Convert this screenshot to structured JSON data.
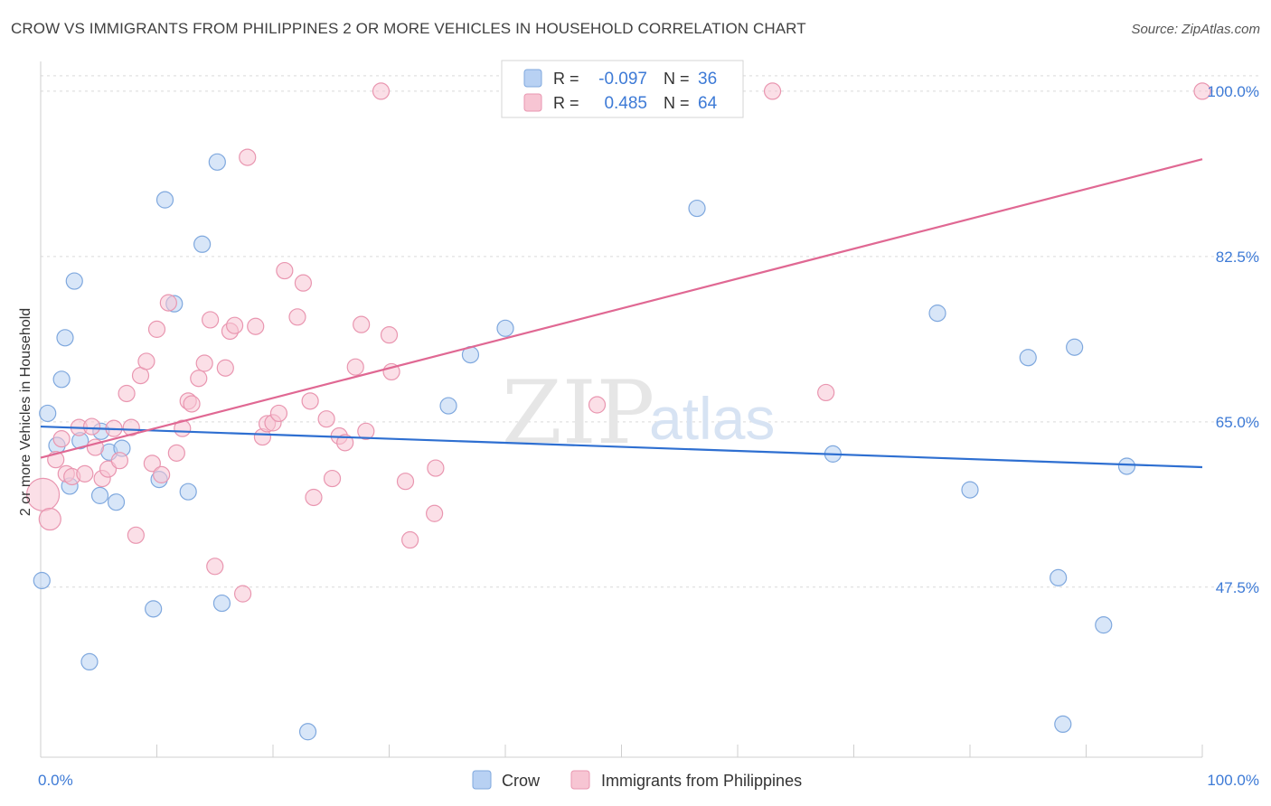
{
  "title": "CROW VS IMMIGRANTS FROM PHILIPPINES 2 OR MORE VEHICLES IN HOUSEHOLD CORRELATION CHART",
  "source": "Source: ZipAtlas.com",
  "watermark": {
    "zip": "ZIP",
    "atlas": "atlas"
  },
  "colors": {
    "crow_fill": "#b8d1f3",
    "crow_stroke": "#7fa8de",
    "crow_line": "#2e6fd1",
    "phil_fill": "#f7c5d3",
    "phil_stroke": "#e996b0",
    "phil_line": "#e06893",
    "tick_label": "#3d7ad6",
    "grid": "#d9d9d9"
  },
  "legend": {
    "rows": [
      {
        "series": "crow",
        "r_label": "R =",
        "r_value": "-0.097",
        "n_label": "N =",
        "n_value": "36"
      },
      {
        "series": "phil",
        "r_label": "R =",
        "r_value": "0.485",
        "n_label": "N =",
        "n_value": "64"
      }
    ]
  },
  "chart_data": {
    "type": "scatter",
    "title": "CROW VS IMMIGRANTS FROM PHILIPPINES 2 OR MORE VEHICLES IN HOUSEHOLD CORRELATION CHART",
    "xlabel": "",
    "ylabel": "2 or more Vehicles in Household",
    "xlim": [
      0,
      100
    ],
    "ylim": [
      29.5,
      102
    ],
    "x_tick_labels": [
      {
        "value": 0,
        "label": "0.0%"
      },
      {
        "value": 100,
        "label": "100.0%"
      }
    ],
    "y_ticks": [
      {
        "value": 100,
        "label": "100.0%"
      },
      {
        "value": 82.5,
        "label": "82.5%"
      },
      {
        "value": 65,
        "label": "65.0%"
      },
      {
        "value": 47.5,
        "label": "47.5%"
      }
    ],
    "grid": true,
    "legend_position": "top-center",
    "series": [
      {
        "name": "Crow",
        "key": "crow",
        "trend": {
          "x": [
            0,
            100
          ],
          "y": [
            64.5,
            60.2
          ]
        },
        "points": [
          [
            0.1,
            48.2,
            9
          ],
          [
            0.6,
            65.9,
            9
          ],
          [
            1.4,
            62.5,
            9
          ],
          [
            1.8,
            69.5,
            9
          ],
          [
            2.1,
            73.9,
            9
          ],
          [
            2.5,
            58.2,
            9
          ],
          [
            2.9,
            79.9,
            9
          ],
          [
            3.4,
            63.0,
            9
          ],
          [
            4.2,
            39.6,
            9
          ],
          [
            5.1,
            57.2,
            9
          ],
          [
            5.2,
            64.0,
            9
          ],
          [
            5.9,
            61.8,
            9
          ],
          [
            6.5,
            56.5,
            9
          ],
          [
            7.0,
            62.2,
            9
          ],
          [
            9.7,
            45.2,
            9
          ],
          [
            10.2,
            58.9,
            9
          ],
          [
            10.7,
            88.5,
            9
          ],
          [
            11.5,
            77.5,
            9
          ],
          [
            12.7,
            57.6,
            9
          ],
          [
            13.9,
            83.8,
            9
          ],
          [
            15.2,
            92.5,
            9
          ],
          [
            15.6,
            45.8,
            9
          ],
          [
            23.0,
            32.2,
            9
          ],
          [
            35.1,
            66.7,
            9
          ],
          [
            37.0,
            72.1,
            9
          ],
          [
            40.0,
            74.9,
            9
          ],
          [
            56.5,
            87.6,
            9
          ],
          [
            68.2,
            61.6,
            9
          ],
          [
            77.2,
            76.5,
            9
          ],
          [
            80.0,
            57.8,
            9
          ],
          [
            85.0,
            71.8,
            9
          ],
          [
            87.6,
            48.5,
            9
          ],
          [
            88.0,
            33.0,
            9
          ],
          [
            89.0,
            72.9,
            9
          ],
          [
            91.5,
            43.5,
            9
          ],
          [
            93.5,
            60.3,
            9
          ]
        ]
      },
      {
        "name": "Immigrants from Philippines",
        "key": "phil",
        "trend": {
          "x": [
            0,
            100
          ],
          "y": [
            61.2,
            92.8
          ]
        },
        "points": [
          [
            0.2,
            57.3,
            18
          ],
          [
            0.8,
            54.7,
            12
          ],
          [
            1.3,
            61.0,
            9
          ],
          [
            1.8,
            63.2,
            9
          ],
          [
            2.2,
            59.5,
            9
          ],
          [
            2.7,
            59.2,
            9
          ],
          [
            3.3,
            64.4,
            9
          ],
          [
            3.8,
            59.5,
            9
          ],
          [
            4.4,
            64.5,
            9
          ],
          [
            4.7,
            62.3,
            9
          ],
          [
            5.3,
            59.0,
            9
          ],
          [
            5.8,
            60.0,
            9
          ],
          [
            6.3,
            64.3,
            9
          ],
          [
            6.8,
            60.9,
            9
          ],
          [
            7.4,
            68.0,
            9
          ],
          [
            7.8,
            64.4,
            9
          ],
          [
            8.2,
            53.0,
            9
          ],
          [
            8.6,
            69.9,
            9
          ],
          [
            9.1,
            71.4,
            9
          ],
          [
            9.6,
            60.6,
            9
          ],
          [
            10.0,
            74.8,
            9
          ],
          [
            10.4,
            59.4,
            9
          ],
          [
            11.0,
            77.6,
            9
          ],
          [
            11.7,
            61.7,
            9
          ],
          [
            12.2,
            64.3,
            9
          ],
          [
            12.7,
            67.2,
            9
          ],
          [
            13.0,
            66.9,
            9
          ],
          [
            13.6,
            69.6,
            9
          ],
          [
            14.1,
            71.2,
            9
          ],
          [
            14.6,
            75.8,
            9
          ],
          [
            15.0,
            49.7,
            9
          ],
          [
            15.9,
            70.7,
            9
          ],
          [
            16.3,
            74.6,
            9
          ],
          [
            16.7,
            75.2,
            9
          ],
          [
            17.4,
            46.8,
            9
          ],
          [
            17.8,
            93.0,
            9
          ],
          [
            18.5,
            75.1,
            9
          ],
          [
            19.1,
            63.4,
            9
          ],
          [
            19.5,
            64.8,
            9
          ],
          [
            20.0,
            64.9,
            9
          ],
          [
            20.5,
            65.9,
            9
          ],
          [
            21.0,
            81.0,
            9
          ],
          [
            22.1,
            76.1,
            9
          ],
          [
            22.6,
            79.7,
            9
          ],
          [
            23.2,
            67.2,
            9
          ],
          [
            23.5,
            57.0,
            9
          ],
          [
            24.6,
            65.3,
            9
          ],
          [
            25.1,
            59.0,
            9
          ],
          [
            25.7,
            63.5,
            9
          ],
          [
            26.2,
            62.8,
            9
          ],
          [
            27.1,
            70.8,
            9
          ],
          [
            27.6,
            75.3,
            9
          ],
          [
            28.0,
            64.0,
            9
          ],
          [
            29.3,
            100.0,
            9
          ],
          [
            30.0,
            74.2,
            9
          ],
          [
            30.2,
            70.3,
            9
          ],
          [
            31.4,
            58.7,
            9
          ],
          [
            31.8,
            52.5,
            9
          ],
          [
            33.9,
            55.3,
            9
          ],
          [
            34.0,
            60.1,
            9
          ],
          [
            47.9,
            66.8,
            9
          ],
          [
            63.0,
            100.0,
            9
          ],
          [
            67.6,
            68.1,
            9
          ],
          [
            100.0,
            100.0,
            9
          ]
        ]
      }
    ]
  }
}
